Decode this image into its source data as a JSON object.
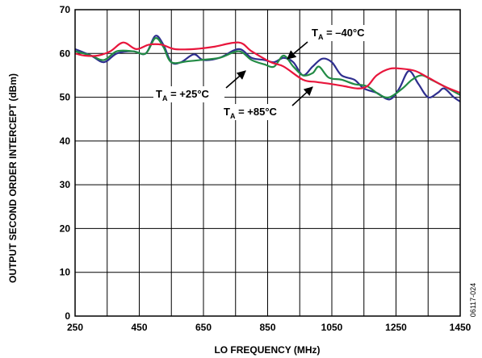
{
  "chart_data": {
    "type": "line",
    "title": "",
    "xlabel": "LO FREQUENCY (MHz)",
    "ylabel": "OUTPUT SECOND ORDER INTERCEPT (dBm)",
    "xlim": [
      250,
      1450
    ],
    "ylim": [
      0,
      70
    ],
    "x_ticks": [
      250,
      450,
      650,
      850,
      1050,
      1250,
      1450
    ],
    "y_ticks": [
      0,
      10,
      20,
      30,
      40,
      50,
      60,
      70
    ],
    "x_grid_step": 100,
    "grid": true,
    "series": [
      {
        "name": "T_A = –40°C",
        "color": "#2f2f8f",
        "points": [
          [
            250,
            61
          ],
          [
            300,
            59.5
          ],
          [
            340,
            58
          ],
          [
            380,
            60
          ],
          [
            430,
            60.5
          ],
          [
            470,
            60
          ],
          [
            500,
            64
          ],
          [
            525,
            62
          ],
          [
            550,
            58
          ],
          [
            580,
            58
          ],
          [
            620,
            59.8
          ],
          [
            650,
            58.5
          ],
          [
            700,
            59
          ],
          [
            760,
            61
          ],
          [
            800,
            59
          ],
          [
            840,
            58.5
          ],
          [
            870,
            58
          ],
          [
            900,
            59
          ],
          [
            930,
            58
          ],
          [
            960,
            55
          ],
          [
            990,
            57
          ],
          [
            1020,
            58.8
          ],
          [
            1050,
            58
          ],
          [
            1080,
            55
          ],
          [
            1120,
            54
          ],
          [
            1150,
            52
          ],
          [
            1190,
            51
          ],
          [
            1230,
            49.5
          ],
          [
            1260,
            52
          ],
          [
            1290,
            56
          ],
          [
            1320,
            53
          ],
          [
            1350,
            50
          ],
          [
            1380,
            51
          ],
          [
            1400,
            52
          ],
          [
            1430,
            50
          ],
          [
            1450,
            49
          ]
        ]
      },
      {
        "name": "T_A = +25°C",
        "color": "#228b45",
        "points": [
          [
            250,
            60.5
          ],
          [
            300,
            59.5
          ],
          [
            340,
            58.5
          ],
          [
            380,
            60.5
          ],
          [
            430,
            60.5
          ],
          [
            470,
            60
          ],
          [
            500,
            63.5
          ],
          [
            525,
            61.5
          ],
          [
            550,
            58
          ],
          [
            600,
            58.2
          ],
          [
            640,
            58.5
          ],
          [
            700,
            59
          ],
          [
            760,
            60.5
          ],
          [
            800,
            58.5
          ],
          [
            840,
            57.5
          ],
          [
            870,
            57
          ],
          [
            900,
            59.5
          ],
          [
            930,
            57
          ],
          [
            960,
            55
          ],
          [
            990,
            55.5
          ],
          [
            1010,
            57
          ],
          [
            1040,
            54.5
          ],
          [
            1080,
            54
          ],
          [
            1120,
            53
          ],
          [
            1160,
            52.5
          ],
          [
            1200,
            50.5
          ],
          [
            1230,
            50
          ],
          [
            1270,
            52
          ],
          [
            1300,
            54
          ],
          [
            1330,
            55
          ],
          [
            1360,
            54
          ],
          [
            1400,
            52.5
          ],
          [
            1450,
            50.5
          ]
        ]
      },
      {
        "name": "T_A = +85°C",
        "color": "#e8163c",
        "points": [
          [
            250,
            60
          ],
          [
            280,
            59.5
          ],
          [
            320,
            59.5
          ],
          [
            360,
            60.5
          ],
          [
            400,
            62.5
          ],
          [
            440,
            61
          ],
          [
            480,
            62
          ],
          [
            520,
            62
          ],
          [
            560,
            61
          ],
          [
            620,
            61
          ],
          [
            680,
            61.5
          ],
          [
            760,
            62.5
          ],
          [
            800,
            60.5
          ],
          [
            860,
            58
          ],
          [
            900,
            57
          ],
          [
            960,
            54
          ],
          [
            1000,
            53.5
          ],
          [
            1050,
            53
          ],
          [
            1090,
            52.5
          ],
          [
            1130,
            52
          ],
          [
            1160,
            52.5
          ],
          [
            1190,
            55
          ],
          [
            1230,
            56.5
          ],
          [
            1270,
            56.5
          ],
          [
            1310,
            56
          ],
          [
            1350,
            54.5
          ],
          [
            1400,
            52.5
          ],
          [
            1450,
            51
          ]
        ]
      }
    ],
    "annotations": [
      {
        "text_main": "T",
        "text_sub": "A",
        "text_rest": " = –40°C"
      },
      {
        "text_main": "T",
        "text_sub": "A",
        "text_rest": " = +25°C"
      },
      {
        "text_main": "T",
        "text_sub": "A",
        "text_rest": " = +85°C"
      }
    ],
    "figure_code": "06117-024"
  }
}
